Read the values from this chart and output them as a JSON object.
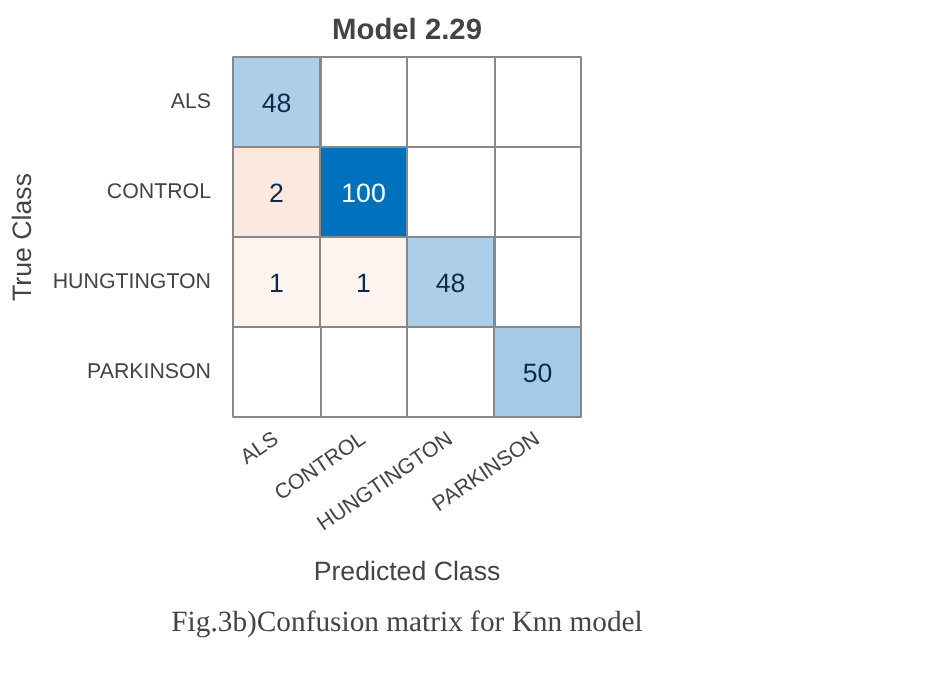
{
  "chart_data": {
    "type": "heatmap",
    "title": "Model 2.29",
    "xlabel": "Predicted Class",
    "ylabel": "True Class",
    "categories": [
      "ALS",
      "CONTROL",
      "HUNGTINGTON",
      "PARKINSON"
    ],
    "y_categories": [
      "ALS",
      "CONTROL",
      "HUNGTINGTON",
      "PARKINSON"
    ],
    "cells": [
      [
        48,
        null,
        null,
        null
      ],
      [
        2,
        100,
        null,
        null
      ],
      [
        1,
        1,
        48,
        null
      ],
      [
        null,
        null,
        null,
        50
      ]
    ],
    "grid": true,
    "data_labels": true,
    "annotations": [
      "Fig.3b)Confusion matrix for Knn model"
    ]
  }
}
